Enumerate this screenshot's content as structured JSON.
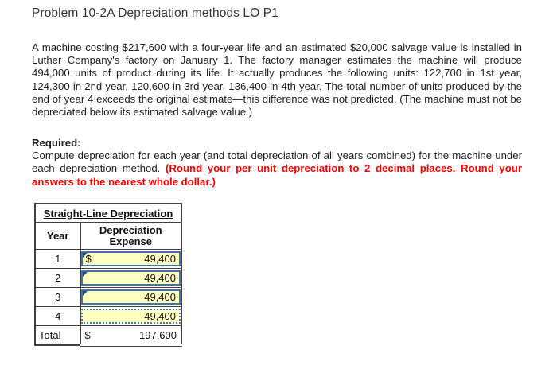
{
  "header": {
    "title": "Problem 10-2A Depreciation methods LO P1"
  },
  "problem": {
    "description": "A machine costing $217,600 with a four-year life and an estimated $20,000 salvage value is installed in Luther Company's factory on January 1. The factory manager estimates the machine will produce 494,000 units of product during its life. It actually produces the following units: 122,700 in 1st year, 124,300 in 2nd year, 120,600 in 3rd year, 136,400 in 4th year. The total number of units produced by the end of year 4 exceeds the original estimate—this difference was not predicted. (The machine must not be depreciated below its estimated salvage value.)"
  },
  "required": {
    "label": "Required:",
    "instruction": "Compute depreciation for each year (and total depreciation of all years combined) for the machine under each depreciation method. ",
    "emphasis": "(Round your per unit depreciation to 2 decimal places. Round your answers to the nearest whole dollar.)"
  },
  "worksheet": {
    "title": "Straight-Line Depreciation",
    "columns": {
      "year": "Year",
      "expense": "Depreciation Expense"
    },
    "rows": [
      {
        "year": "1",
        "currency": "$",
        "value": "49,400"
      },
      {
        "year": "2",
        "currency": "",
        "value": "49,400"
      },
      {
        "year": "3",
        "currency": "",
        "value": "49,400"
      },
      {
        "year": "4",
        "currency": "",
        "value": "49,400"
      }
    ],
    "total": {
      "label": "Total",
      "currency": "$",
      "value": "197,600"
    }
  },
  "colors": {
    "emphasis": "#ff0000",
    "table_header_bg": "#AFC5E4",
    "input_bg": "#FFFFC2",
    "input_border": "#4472A8",
    "selected_border": "#3B78D8",
    "marker": "#1F4E79",
    "grid": "#404040"
  }
}
